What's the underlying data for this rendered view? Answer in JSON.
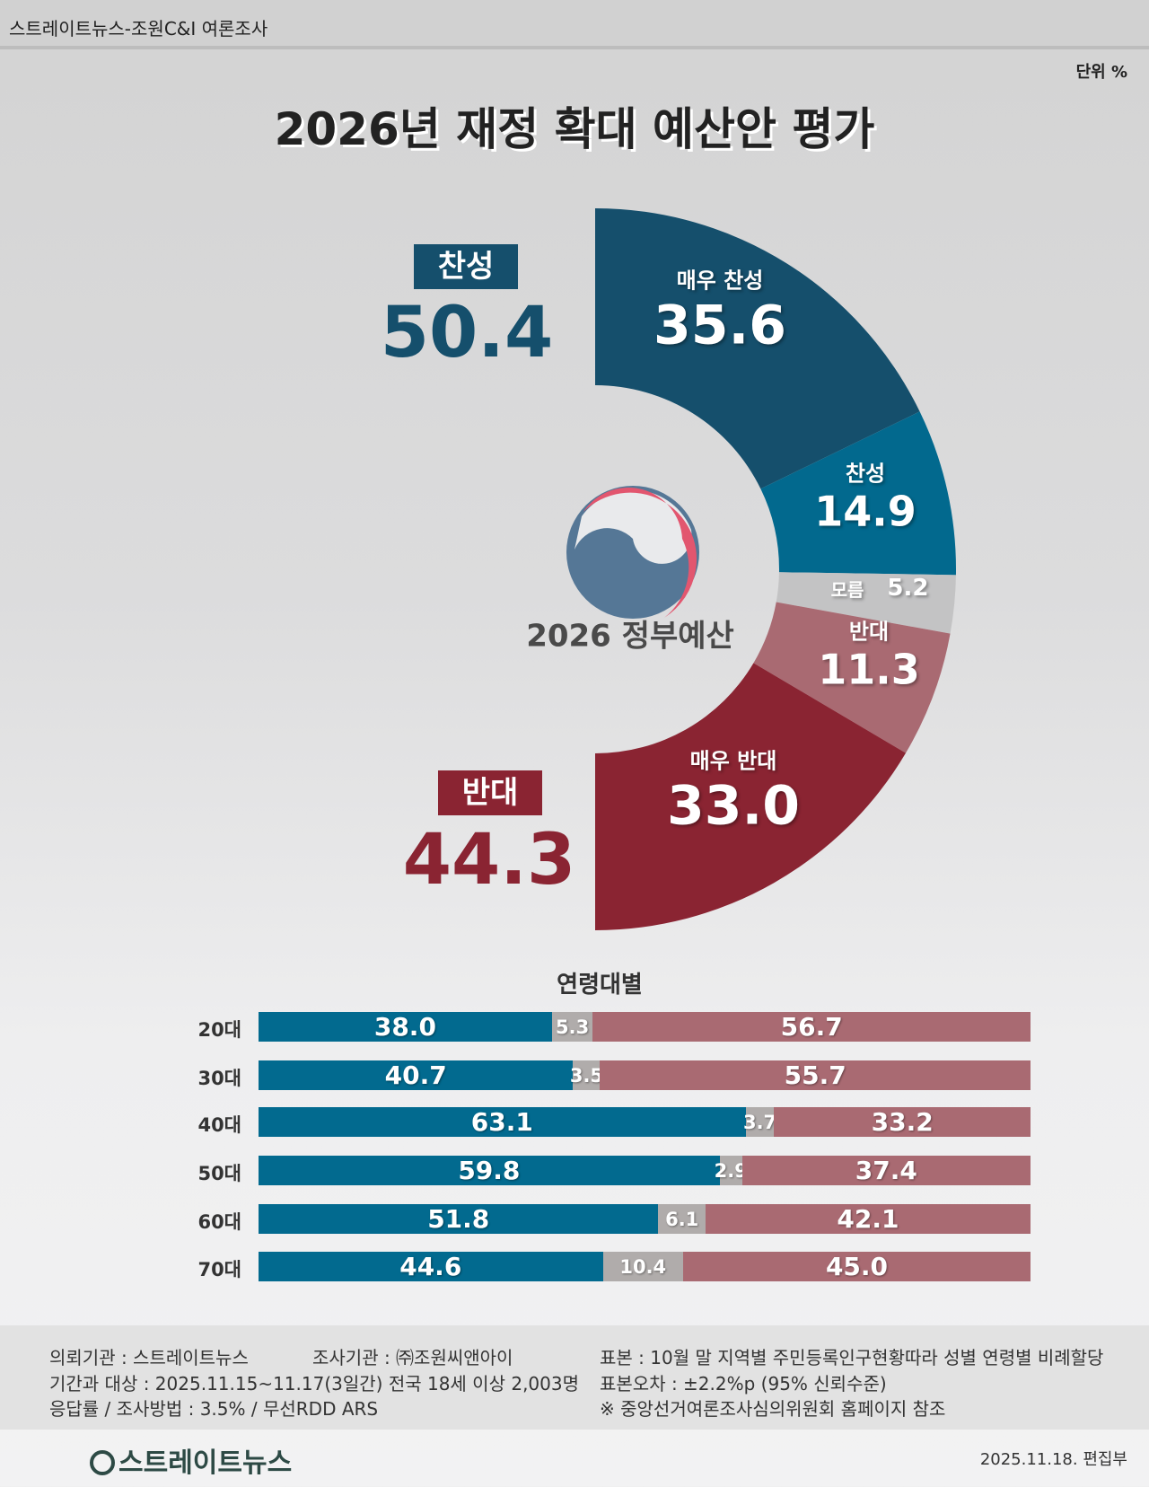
{
  "header": {
    "source": "스트레이트뉴스-조원C&I 여론조사"
  },
  "unit": "단위 %",
  "chart_data": [
    {
      "type": "pie",
      "title": "2026년 재정 확대 예산안  평가",
      "center_label": "2026 정부예산",
      "groups": [
        {
          "label": "찬성",
          "value": "50.4",
          "color": "#154f6c"
        },
        {
          "label": "반대",
          "value": "44.3",
          "color": "#8a2432"
        }
      ],
      "slices": [
        {
          "label": "매우 찬성",
          "value": 35.6,
          "display": "35.6",
          "color": "#154f6c"
        },
        {
          "label": "찬성",
          "value": 14.9,
          "display": "14.9",
          "color": "#02698e"
        },
        {
          "label": "모름",
          "value": 5.2,
          "display": "5.2",
          "color": "#c3c3c4"
        },
        {
          "label": "반대",
          "value": 11.3,
          "display": "11.3",
          "color": "#a96a72"
        },
        {
          "label": "매우 반대",
          "value": 33.0,
          "display": "33.0",
          "color": "#8a2432"
        }
      ]
    },
    {
      "type": "bar",
      "stacked": true,
      "orientation": "horizontal",
      "title": "연령대별",
      "categories": [
        "20대",
        "30대",
        "40대",
        "50대",
        "60대",
        "70대"
      ],
      "series": [
        {
          "name": "찬성",
          "color": "#026a8f",
          "values": [
            38.0,
            40.7,
            63.1,
            59.8,
            51.8,
            44.6
          ],
          "labels": [
            "38.0",
            "40.7",
            "63.1",
            "59.8",
            "51.8",
            "44.6"
          ]
        },
        {
          "name": "모름",
          "color": "#b0acab",
          "values": [
            5.3,
            3.5,
            3.7,
            2.9,
            6.1,
            10.4
          ],
          "labels": [
            "5.3",
            "3.5",
            "3.7",
            "2.9",
            "6.1",
            "10.4"
          ]
        },
        {
          "name": "반대",
          "color": "#a96a72",
          "values": [
            56.7,
            55.7,
            33.2,
            37.4,
            42.1,
            45.0
          ],
          "labels": [
            "56.7",
            "55.7",
            "33.2",
            "37.4",
            "42.1",
            "45.0"
          ]
        }
      ]
    }
  ],
  "footer": {
    "client": "의뢰기관 : 스트레이트뉴스",
    "agency": "조사기관 : ㈜조원씨앤아이",
    "sample": "표본 : 10월 말 지역별 주민등록인구현황따라 성별 연령별 비례할당",
    "period": "기간과 대상 : 2025.11.15~11.17(3일간)   전국 18세 이상  2,003명",
    "error": "표본오차 : ±2.2%p (95% 신뢰수준)",
    "method": "응답률 / 조사방법 : 3.5% / 무선RDD ARS",
    "note": "※ 중앙선거여론조사심의위원회 홈페이지 참조",
    "brand": "스트레이트뉴스",
    "date": "2025.11.18. 편집부"
  }
}
